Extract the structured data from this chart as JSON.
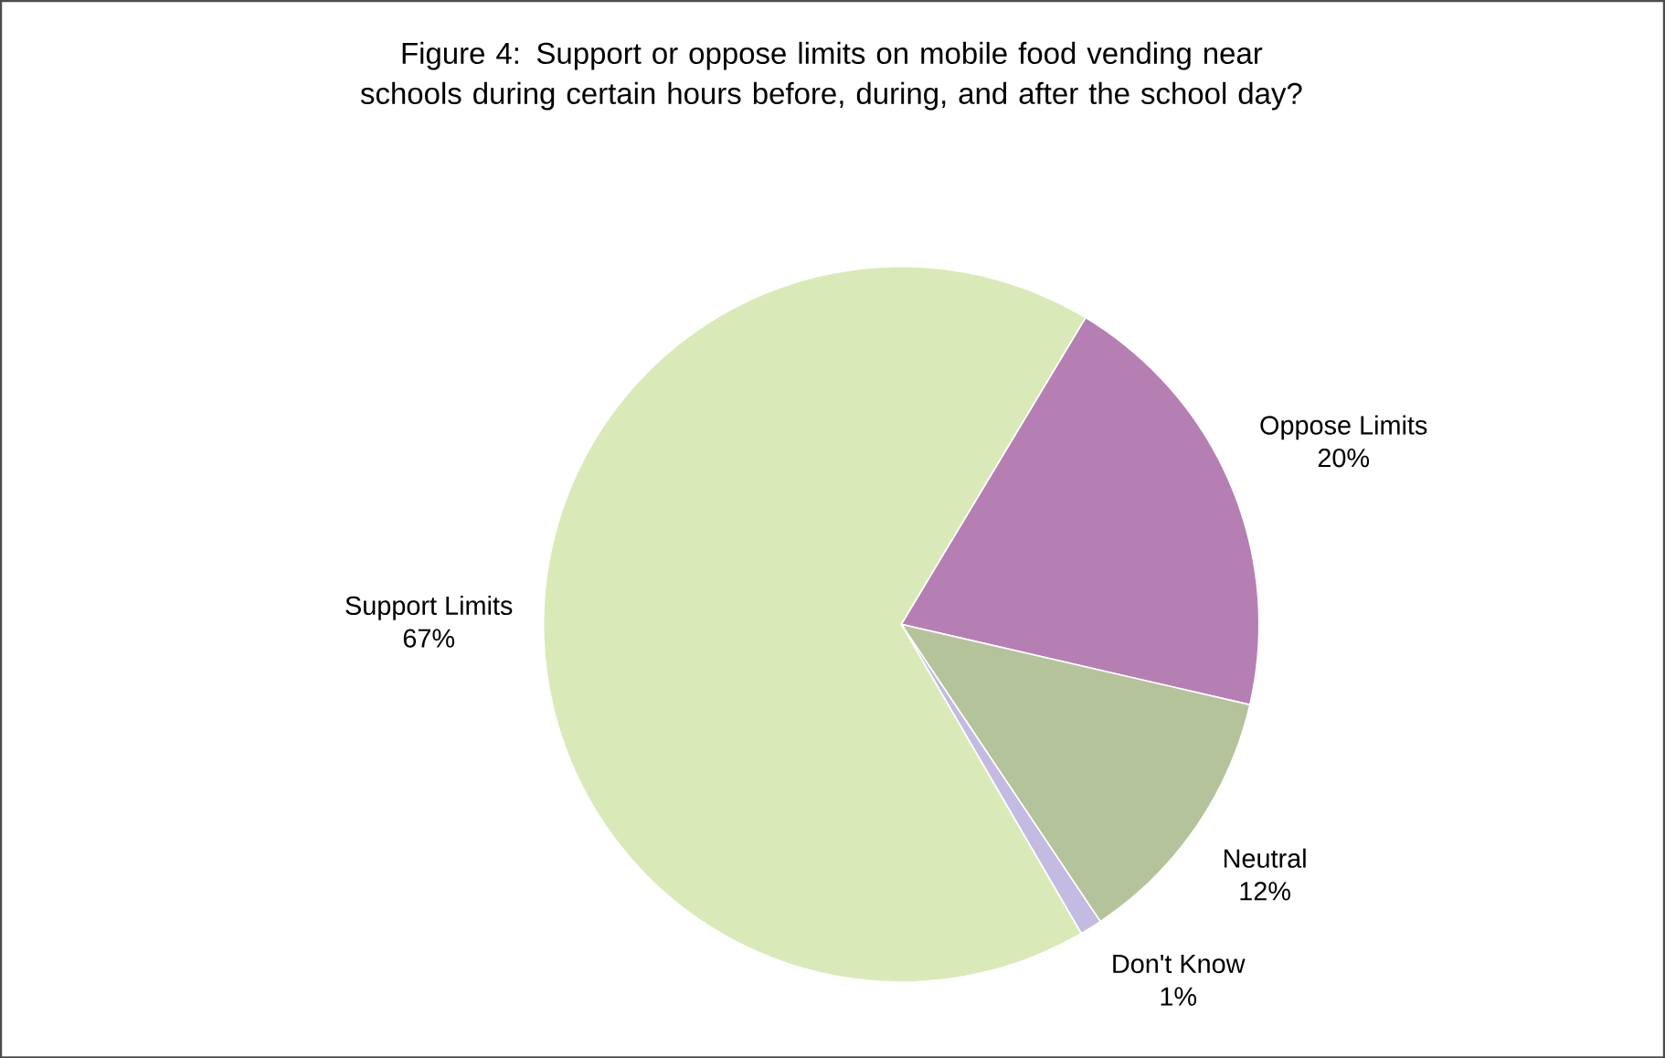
{
  "chart_data": {
    "type": "pie",
    "title": "Figure 4: Support or oppose limits on mobile food vending near schools during certain hours before, during, and after the school day?",
    "categories": [
      "Oppose Limits",
      "Neutral",
      "Don't Know",
      "Support Limits"
    ],
    "values": [
      20,
      12,
      1,
      67
    ],
    "value_labels": [
      "20%",
      "12%",
      "1%",
      "67%"
    ],
    "colors": [
      "#b67fb3",
      "#b5c39a",
      "#c4bbe2",
      "#d9eab8"
    ]
  }
}
